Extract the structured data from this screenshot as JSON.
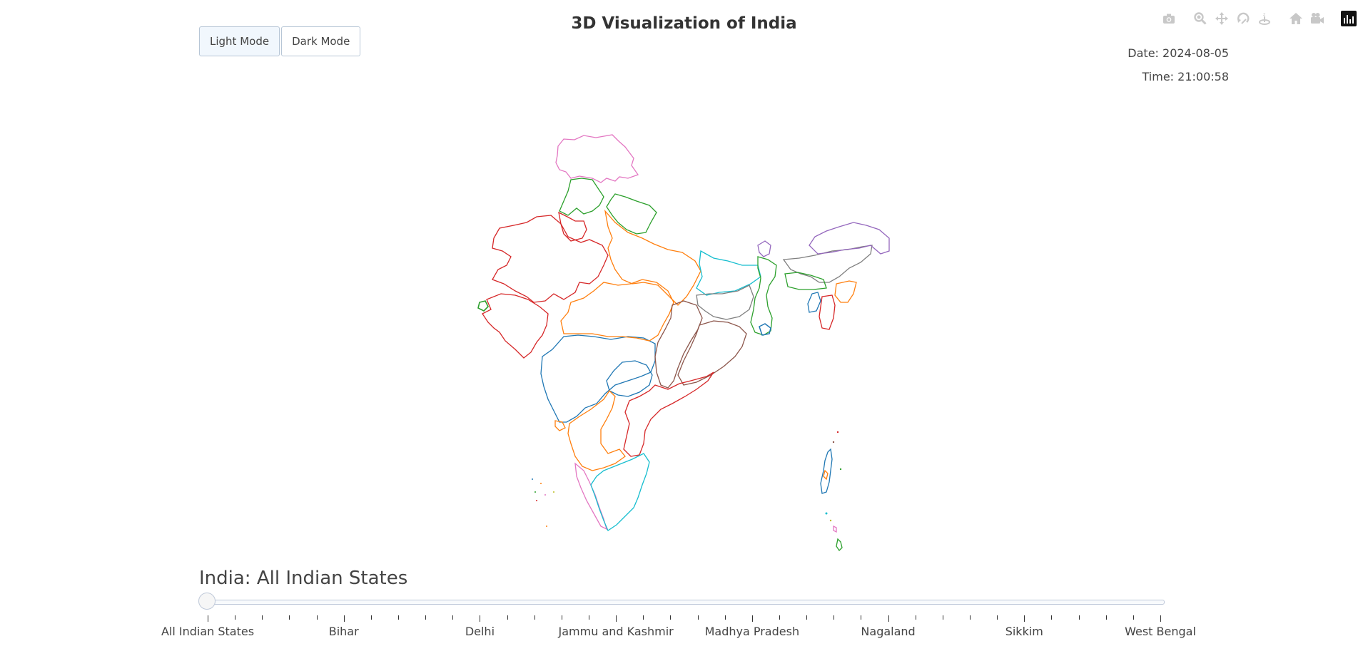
{
  "title": "3D Visualization of India",
  "theme_buttons": [
    {
      "label": "Light Mode",
      "active": true
    },
    {
      "label": "Dark Mode",
      "active": false
    }
  ],
  "date_text": "Date: 2024-08-05",
  "time_text": "Time: 21:00:58",
  "modebar": {
    "icons": [
      "camera-icon",
      "zoom-icon",
      "pan-icon",
      "orbit-rotation-icon",
      "turntable-rotation-icon",
      "reset-camera-icon",
      "camera-last-save-icon"
    ],
    "logo": "plotly-logo-icon",
    "icon_color": "#c8c8c8"
  },
  "slider": {
    "current_label": "India: All Indian States",
    "steps_count": 36,
    "active_index": 0,
    "labels": [
      "All Indian States",
      "Bihar",
      "Delhi",
      "Jammu and Kashmir",
      "Madhya Pradesh",
      "Nagaland",
      "Sikkim",
      "West Bengal"
    ],
    "label_step_indices": [
      0,
      5,
      10,
      15,
      20,
      25,
      30,
      35
    ]
  },
  "map_palette": [
    "#d62728",
    "#1f77b4",
    "#ff7f0e",
    "#2ca02c",
    "#9467bd",
    "#8c564b",
    "#e377c2",
    "#7f7f7f",
    "#17becf",
    "#bcbd22"
  ]
}
